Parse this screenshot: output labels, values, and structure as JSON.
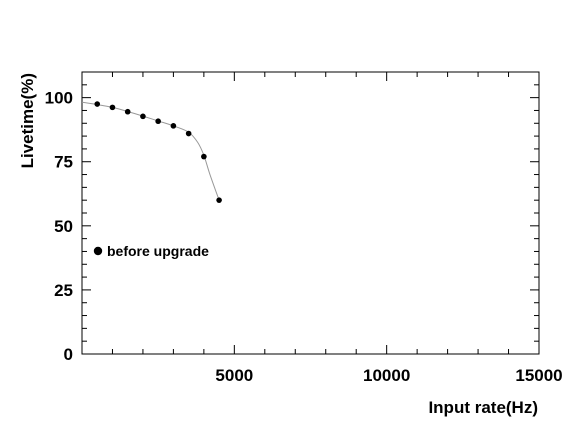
{
  "chart_data": {
    "type": "scatter",
    "title": "",
    "xlabel": "Input rate(Hz)",
    "ylabel": "Livetime(%)",
    "xlim": [
      0,
      15000
    ],
    "ylim": [
      0,
      110
    ],
    "x_ticks": [
      5000,
      10000,
      15000
    ],
    "y_ticks": [
      0,
      25,
      50,
      75,
      100
    ],
    "x_tick_labels": [
      "5000",
      "10000",
      "15000"
    ],
    "y_tick_labels": [
      "0",
      "25",
      "50",
      "75",
      "100"
    ],
    "grid": false,
    "legend_position": "center-left",
    "series": [
      {
        "name": "before upgrade",
        "marker": "filled-circle",
        "color": "#000000",
        "x": [
          500,
          1000,
          1500,
          2000,
          2500,
          3000,
          3500,
          4000,
          4500
        ],
        "y": [
          97.5,
          96.2,
          94.5,
          92.7,
          90.8,
          89.0,
          86.0,
          77.0,
          60.0
        ]
      }
    ],
    "fit_curve": {
      "color": "#999999",
      "x": [
        0,
        500,
        1000,
        1500,
        2000,
        2500,
        3000,
        3500,
        3800,
        4000,
        4200,
        4500
      ],
      "y": [
        98.2,
        97.3,
        96.2,
        94.6,
        92.8,
        90.9,
        89.0,
        86.5,
        82.5,
        77.5,
        70.0,
        60.0
      ]
    }
  }
}
